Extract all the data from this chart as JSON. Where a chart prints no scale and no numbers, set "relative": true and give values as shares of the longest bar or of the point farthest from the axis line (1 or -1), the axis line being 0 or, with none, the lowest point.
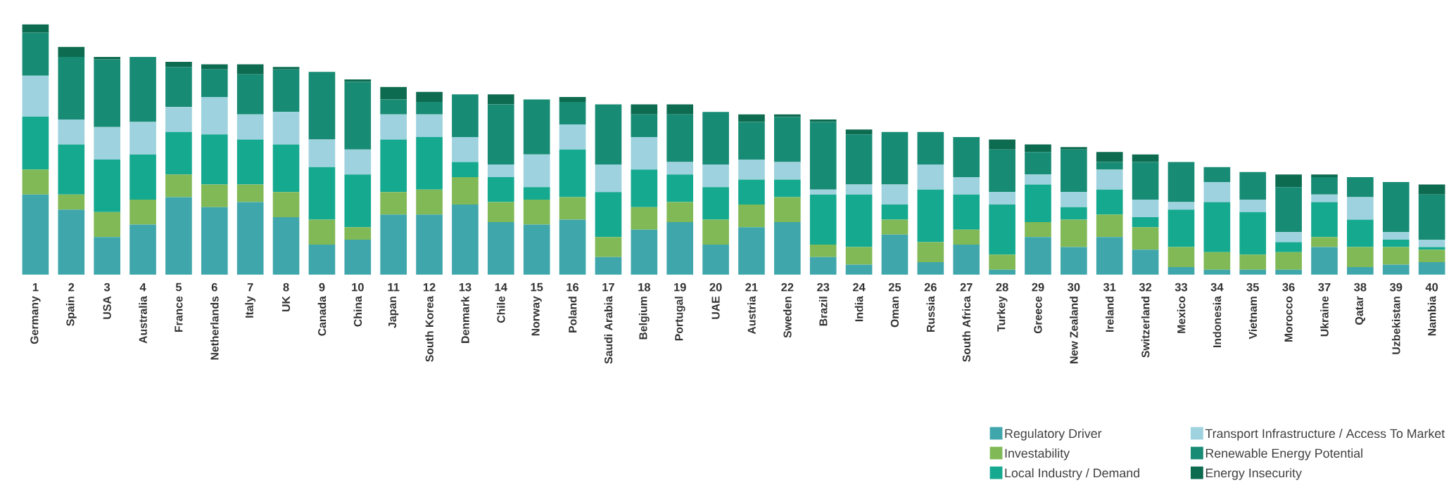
{
  "chart_data": {
    "type": "bar",
    "stacked": true,
    "relative": true,
    "legend": "bottom right",
    "categories": [
      "Germany",
      "Spain",
      "USA",
      "Australia",
      "France",
      "Netherlands",
      "Italy",
      "UK",
      "Canada",
      "China",
      "Japan",
      "South Korea",
      "Denmark",
      "Chile",
      "Norway",
      "Poland",
      "Saudi Arabia",
      "Belgium",
      "Portugal",
      "UAE",
      "Austria",
      "Sweden",
      "Brazil",
      "India",
      "Oman",
      "Russia",
      "South Africa",
      "Turkey",
      "Greece",
      "New Zealand",
      "Ireland",
      "Switzerland",
      "Mexico",
      "Indonesia",
      "Vietnam",
      "Morocco",
      "Ukraine",
      "Qatar",
      "Uzbekistan",
      "Nambia"
    ],
    "series": [
      {
        "name": "Regulatory Driver",
        "color": "#3fa6ab",
        "values": [
          0.32,
          0.26,
          0.15,
          0.2,
          0.31,
          0.27,
          0.29,
          0.23,
          0.12,
          0.14,
          0.24,
          0.24,
          0.28,
          0.21,
          0.2,
          0.22,
          0.07,
          0.18,
          0.21,
          0.12,
          0.19,
          0.21,
          0.07,
          0.04,
          0.16,
          0.05,
          0.12,
          0.02,
          0.15,
          0.11,
          0.15,
          0.1,
          0.03,
          0.02,
          0.02,
          0.02,
          0.11,
          0.03,
          0.04,
          0.05
        ]
      },
      {
        "name": "Investability",
        "color": "#80b956",
        "values": [
          0.1,
          0.06,
          0.1,
          0.1,
          0.09,
          0.09,
          0.07,
          0.1,
          0.1,
          0.05,
          0.09,
          0.1,
          0.11,
          0.08,
          0.1,
          0.09,
          0.08,
          0.09,
          0.08,
          0.1,
          0.09,
          0.1,
          0.05,
          0.07,
          0.06,
          0.08,
          0.06,
          0.06,
          0.06,
          0.11,
          0.09,
          0.09,
          0.08,
          0.07,
          0.06,
          0.07,
          0.04,
          0.08,
          0.07,
          0.05
        ]
      },
      {
        "name": "Local Industry / Demand",
        "color": "#15a990",
        "values": [
          0.211,
          0.2,
          0.21,
          0.18,
          0.17,
          0.2,
          0.18,
          0.19,
          0.21,
          0.21,
          0.21,
          0.21,
          0.06,
          0.1,
          0.05,
          0.19,
          0.18,
          0.15,
          0.11,
          0.13,
          0.1,
          0.07,
          0.2,
          0.21,
          0.06,
          0.21,
          0.14,
          0.2,
          0.15,
          0.05,
          0.1,
          0.04,
          0.15,
          0.2,
          0.17,
          0.04,
          0.14,
          0.11,
          0.03,
          0.01
        ]
      },
      {
        "name": "Transport Infrastructure / Access To Market",
        "color": "#9dd2de",
        "values": [
          0.164,
          0.1,
          0.13,
          0.13,
          0.1,
          0.15,
          0.1,
          0.13,
          0.11,
          0.1,
          0.1,
          0.09,
          0.1,
          0.05,
          0.13,
          0.1,
          0.11,
          0.13,
          0.05,
          0.09,
          0.08,
          0.07,
          0.02,
          0.04,
          0.08,
          0.1,
          0.07,
          0.05,
          0.04,
          0.06,
          0.08,
          0.07,
          0.03,
          0.08,
          0.05,
          0.04,
          0.03,
          0.09,
          0.03,
          0.03
        ]
      },
      {
        "name": "Renewable Energy Potential",
        "color": "#178b74",
        "values": [
          0.172,
          0.25,
          0.27,
          0.26,
          0.16,
          0.11,
          0.16,
          0.17,
          0.27,
          0.27,
          0.06,
          0.05,
          0.17,
          0.24,
          0.22,
          0.09,
          0.24,
          0.09,
          0.19,
          0.21,
          0.15,
          0.18,
          0.27,
          0.2,
          0.21,
          0.13,
          0.16,
          0.17,
          0.09,
          0.17,
          0.03,
          0.15,
          0.16,
          0.06,
          0.11,
          0.18,
          0.07,
          0.08,
          0.2,
          0.18
        ]
      },
      {
        "name": "Energy Insecurity",
        "color": "#0d6b50",
        "values": [
          0.033,
          0.04,
          0.01,
          0,
          0.02,
          0.02,
          0.04,
          0.01,
          0,
          0.01,
          0.05,
          0.04,
          0,
          0.04,
          0,
          0.02,
          0,
          0.04,
          0.04,
          0,
          0.03,
          0.01,
          0.01,
          0.02,
          0,
          0,
          0,
          0.04,
          0.03,
          0.01,
          0.04,
          0.03,
          0,
          0,
          0,
          0.05,
          0.01,
          0,
          0,
          0.04
        ]
      }
    ],
    "annotations": [
      "1",
      "2",
      "3",
      "4",
      "5",
      "6",
      "7",
      "8",
      "9",
      "10",
      "11",
      "12",
      "13",
      "14",
      "15",
      "16",
      "17",
      "18",
      "19",
      "20",
      "21",
      "22",
      "23",
      "24",
      "25",
      "26",
      "27",
      "28",
      "29",
      "30",
      "31",
      "32",
      "33",
      "34",
      "35",
      "36",
      "37",
      "38",
      "39",
      "40"
    ]
  }
}
